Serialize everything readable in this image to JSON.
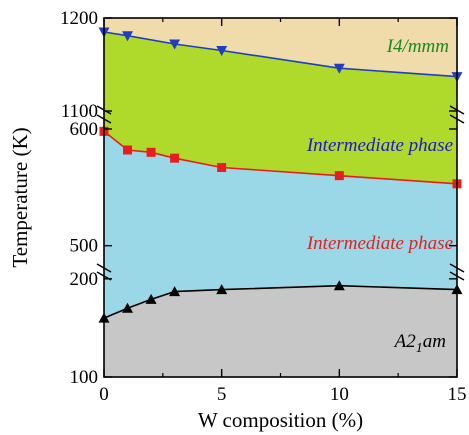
{
  "chart_data": {
    "type": "line",
    "xlabel": "W composition (%)",
    "ylabel": "Temperature (K)",
    "xlim": [
      0,
      15
    ],
    "x_ticks": [
      0,
      5,
      10,
      15
    ],
    "x_tick_labels": [
      "0",
      "5",
      "10",
      "15"
    ],
    "y_axis_broken": true,
    "y_segments": [
      {
        "range": [
          1100,
          1200
        ],
        "ticks": [
          1100,
          1200
        ],
        "tick_labels": [
          "1100",
          "1200"
        ]
      },
      {
        "range": [
          480,
          600
        ],
        "ticks": [
          500,
          600
        ],
        "tick_labels": [
          "500",
          "600"
        ]
      },
      {
        "range": [
          100,
          210
        ],
        "ticks": [
          100,
          200
        ],
        "tick_labels": [
          "100",
          "200"
        ]
      }
    ],
    "series": [
      {
        "marker": "triangle-down",
        "color": "#1f3fbf",
        "x": [
          0,
          1,
          3,
          5,
          10,
          15
        ],
        "y": [
          1185,
          1181,
          1172,
          1165,
          1146,
          1137
        ]
      },
      {
        "marker": "square",
        "color": "#e81e1e",
        "x": [
          0,
          1,
          2,
          3,
          5,
          10,
          15
        ],
        "y": [
          598,
          582,
          580,
          575,
          567,
          560,
          553
        ]
      },
      {
        "marker": "triangle-up",
        "color": "#000000",
        "x": [
          0,
          1,
          2,
          3,
          5,
          10,
          15
        ],
        "y": [
          160,
          170,
          179,
          187,
          189,
          193,
          189
        ]
      }
    ],
    "region_labels": [
      {
        "text": "I4/mmm",
        "color": "#1a8a1a"
      },
      {
        "text": "Intermediate phase",
        "color": "#1a1acc"
      },
      {
        "text": "Intermediate phase",
        "color": "#e81e1e"
      },
      {
        "text_main": "A2",
        "text_sub": "1",
        "text_end": "am",
        "color": "#000000"
      }
    ],
    "region_colors": {
      "top": "#efdcaa",
      "upper": "#afd92b",
      "middle": "#9ad8e8",
      "bottom": "#c7c7c7"
    }
  }
}
